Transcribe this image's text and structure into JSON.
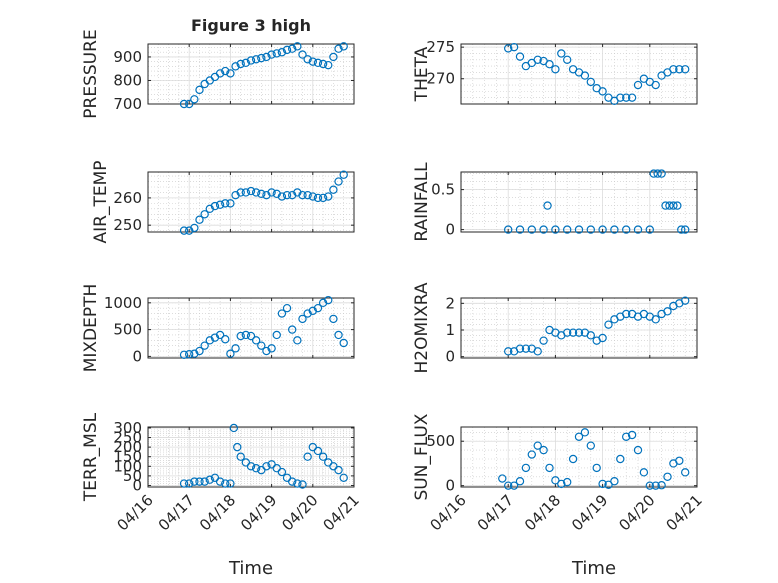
{
  "figure": {
    "title": "Figure 3 high",
    "shared_xlabel": "Time"
  },
  "colors": {
    "marker": "#0072BD",
    "axis": "#262626",
    "grid": "#c8c8c8",
    "background": "#ffffff"
  },
  "chart_data": [
    {
      "id": "pressure",
      "type": "scatter",
      "title": "Figure 3 high",
      "ylabel": "PRESSURE",
      "xlim": [
        "04/16",
        "04/21"
      ],
      "ylim": [
        700,
        955
      ],
      "yticks": [
        700,
        800,
        900
      ],
      "xticks": [
        "04/16",
        "04/17",
        "04/18",
        "04/19",
        "04/20",
        "04/21"
      ],
      "show_xticklabels": false,
      "grid": true,
      "minor_grid": true,
      "x": [
        "04/16 21:00",
        "04/17 00:00",
        "04/17 03:00",
        "04/17 06:00",
        "04/17 09:00",
        "04/17 12:00",
        "04/17 15:00",
        "04/17 18:00",
        "04/17 21:00",
        "04/18 00:00",
        "04/18 03:00",
        "04/18 06:00",
        "04/18 09:00",
        "04/18 12:00",
        "04/18 15:00",
        "04/18 18:00",
        "04/18 21:00",
        "04/19 00:00",
        "04/19 03:00",
        "04/19 06:00",
        "04/19 09:00",
        "04/19 12:00",
        "04/19 15:00",
        "04/19 18:00",
        "04/19 21:00",
        "04/20 00:00",
        "04/20 03:00",
        "04/20 06:00",
        "04/20 09:00",
        "04/20 12:00",
        "04/20 15:00",
        "04/20 18:00"
      ],
      "y": [
        700,
        700,
        720,
        760,
        785,
        800,
        815,
        830,
        840,
        830,
        860,
        870,
        875,
        885,
        890,
        895,
        900,
        910,
        915,
        920,
        930,
        935,
        945,
        910,
        890,
        880,
        875,
        870,
        865,
        900,
        935,
        945
      ]
    },
    {
      "id": "theta",
      "type": "scatter",
      "ylabel": "THETA",
      "xlim": [
        "04/16",
        "04/21"
      ],
      "ylim": [
        266,
        275.5
      ],
      "yticks": [
        270,
        275
      ],
      "xticks": [
        "04/16",
        "04/17",
        "04/18",
        "04/19",
        "04/20",
        "04/21"
      ],
      "show_xticklabels": false,
      "grid": true,
      "minor_grid": true,
      "x": [
        "04/17 00:00",
        "04/17 03:00",
        "04/17 06:00",
        "04/17 09:00",
        "04/17 12:00",
        "04/17 15:00",
        "04/17 18:00",
        "04/17 21:00",
        "04/18 00:00",
        "04/18 03:00",
        "04/18 06:00",
        "04/18 09:00",
        "04/18 12:00",
        "04/18 15:00",
        "04/18 18:00",
        "04/18 21:00",
        "04/19 00:00",
        "04/19 03:00",
        "04/19 06:00",
        "04/19 09:00",
        "04/19 12:00",
        "04/19 15:00",
        "04/19 18:00",
        "04/19 21:00",
        "04/20 00:00",
        "04/20 03:00",
        "04/20 06:00",
        "04/20 09:00",
        "04/20 12:00",
        "04/20 15:00",
        "04/20 18:00"
      ],
      "y": [
        274.8,
        275,
        273.5,
        272,
        272.5,
        273,
        272.8,
        272.3,
        271.5,
        274,
        273,
        271.5,
        271,
        270.5,
        269.5,
        268.5,
        268,
        267,
        266.5,
        267,
        267,
        267,
        269,
        270,
        269.5,
        269,
        270.5,
        271,
        271.5,
        271.5,
        271.5
      ]
    },
    {
      "id": "air_temp",
      "type": "scatter",
      "ylabel": "AIR_TEMP",
      "xlim": [
        "04/16",
        "04/21"
      ],
      "ylim": [
        247.5,
        269.5
      ],
      "yticks": [
        250,
        260
      ],
      "xticks": [
        "04/16",
        "04/17",
        "04/18",
        "04/19",
        "04/20",
        "04/21"
      ],
      "show_xticklabels": false,
      "grid": true,
      "minor_grid": true,
      "x": [
        "04/16 21:00",
        "04/17 00:00",
        "04/17 03:00",
        "04/17 06:00",
        "04/17 09:00",
        "04/17 12:00",
        "04/17 15:00",
        "04/17 18:00",
        "04/17 21:00",
        "04/18 00:00",
        "04/18 03:00",
        "04/18 06:00",
        "04/18 09:00",
        "04/18 12:00",
        "04/18 15:00",
        "04/18 18:00",
        "04/18 21:00",
        "04/19 00:00",
        "04/19 03:00",
        "04/19 06:00",
        "04/19 09:00",
        "04/19 12:00",
        "04/19 15:00",
        "04/19 18:00",
        "04/19 21:00",
        "04/20 00:00",
        "04/20 03:00",
        "04/20 06:00",
        "04/20 09:00",
        "04/20 12:00",
        "04/20 15:00",
        "04/20 18:00"
      ],
      "y": [
        248,
        248,
        249,
        252,
        254,
        256,
        257,
        257.5,
        258,
        258,
        261,
        262,
        262,
        262.5,
        262,
        261.5,
        261,
        262,
        261.5,
        260.5,
        261,
        261,
        262,
        261,
        261,
        260.5,
        260,
        260,
        260.5,
        263,
        266,
        268.5
      ]
    },
    {
      "id": "rainfall",
      "type": "scatter",
      "ylabel": "RAINFALL",
      "xlim": [
        "04/16",
        "04/21"
      ],
      "ylim": [
        -0.03,
        0.72
      ],
      "yticks": [
        0,
        0.5
      ],
      "xticks": [
        "04/16",
        "04/17",
        "04/18",
        "04/19",
        "04/20",
        "04/21"
      ],
      "show_xticklabels": false,
      "grid": true,
      "minor_grid": true,
      "x": [
        "04/17 00:00",
        "04/17 06:00",
        "04/17 12:00",
        "04/17 18:00",
        "04/18 00:00",
        "04/18 06:00",
        "04/18 12:00",
        "04/18 18:00",
        "04/19 00:00",
        "04/19 06:00",
        "04/19 12:00",
        "04/19 18:00",
        "04/20 00:00",
        "04/20 02:00",
        "04/20 04:00",
        "04/20 06:00",
        "04/20 08:00",
        "04/20 10:00",
        "04/20 12:00",
        "04/20 14:00",
        "04/20 16:00",
        "04/20 18:00",
        "04/17 20:00"
      ],
      "y": [
        0,
        0,
        0,
        0,
        0,
        0,
        0,
        0,
        0,
        0,
        0,
        0,
        0,
        0.7,
        0.7,
        0.7,
        0.3,
        0.3,
        0.3,
        0.3,
        0,
        0,
        0.3
      ]
    },
    {
      "id": "mixdepth",
      "type": "scatter",
      "ylabel": "MIXDEPTH",
      "xlim": [
        "04/16",
        "04/21"
      ],
      "ylim": [
        -30,
        1090
      ],
      "yticks": [
        0,
        500,
        1000
      ],
      "xticks": [
        "04/16",
        "04/17",
        "04/18",
        "04/19",
        "04/20",
        "04/21"
      ],
      "show_xticklabels": false,
      "grid": true,
      "minor_grid": true,
      "x": [
        "04/16 21:00",
        "04/17 00:00",
        "04/17 03:00",
        "04/17 06:00",
        "04/17 09:00",
        "04/17 12:00",
        "04/17 15:00",
        "04/17 18:00",
        "04/17 21:00",
        "04/18 00:00",
        "04/18 03:00",
        "04/18 06:00",
        "04/18 09:00",
        "04/18 12:00",
        "04/18 15:00",
        "04/18 18:00",
        "04/18 21:00",
        "04/19 00:00",
        "04/19 03:00",
        "04/19 06:00",
        "04/19 09:00",
        "04/19 12:00",
        "04/19 15:00",
        "04/19 18:00",
        "04/19 21:00",
        "04/20 00:00",
        "04/20 03:00",
        "04/20 06:00",
        "04/20 09:00",
        "04/20 12:00",
        "04/20 15:00",
        "04/20 18:00"
      ],
      "y": [
        30,
        40,
        50,
        100,
        200,
        300,
        350,
        400,
        320,
        50,
        150,
        380,
        400,
        380,
        300,
        200,
        100,
        150,
        400,
        800,
        900,
        500,
        300,
        700,
        800,
        850,
        900,
        1000,
        1050,
        700,
        400,
        250
      ]
    },
    {
      "id": "h2omixra",
      "type": "scatter",
      "ylabel": "H2OMIXRA",
      "xlim": [
        "04/16",
        "04/21"
      ],
      "ylim": [
        -0.05,
        2.2
      ],
      "yticks": [
        0,
        1,
        2
      ],
      "xticks": [
        "04/16",
        "04/17",
        "04/18",
        "04/19",
        "04/20",
        "04/21"
      ],
      "show_xticklabels": false,
      "grid": true,
      "minor_grid": true,
      "x": [
        "04/17 00:00",
        "04/17 03:00",
        "04/17 06:00",
        "04/17 09:00",
        "04/17 12:00",
        "04/17 15:00",
        "04/17 18:00",
        "04/17 21:00",
        "04/18 00:00",
        "04/18 03:00",
        "04/18 06:00",
        "04/18 09:00",
        "04/18 12:00",
        "04/18 15:00",
        "04/18 18:00",
        "04/18 21:00",
        "04/19 00:00",
        "04/19 03:00",
        "04/19 06:00",
        "04/19 09:00",
        "04/19 12:00",
        "04/19 15:00",
        "04/19 18:00",
        "04/19 21:00",
        "04/20 00:00",
        "04/20 03:00",
        "04/20 06:00",
        "04/20 09:00",
        "04/20 12:00",
        "04/20 15:00",
        "04/20 18:00"
      ],
      "y": [
        0.2,
        0.2,
        0.3,
        0.3,
        0.3,
        0.2,
        0.6,
        1.0,
        0.9,
        0.8,
        0.9,
        0.9,
        0.9,
        0.9,
        0.8,
        0.6,
        0.7,
        1.2,
        1.4,
        1.5,
        1.6,
        1.6,
        1.5,
        1.6,
        1.5,
        1.4,
        1.6,
        1.7,
        1.9,
        2.0,
        2.1
      ]
    },
    {
      "id": "terr_msl",
      "type": "scatter",
      "ylabel": "TERR_MSL",
      "xlim": [
        "04/16",
        "04/21"
      ],
      "ylim": [
        -8,
        305
      ],
      "yticks": [
        0,
        50,
        100,
        150,
        200,
        250,
        300
      ],
      "xticks": [
        "04/16",
        "04/17",
        "04/18",
        "04/19",
        "04/20",
        "04/21"
      ],
      "show_xticklabels": false,
      "grid": true,
      "minor_grid": true,
      "x": [
        "04/16 21:00",
        "04/17 00:00",
        "04/17 03:00",
        "04/17 06:00",
        "04/17 09:00",
        "04/17 12:00",
        "04/17 15:00",
        "04/17 18:00",
        "04/17 21:00",
        "04/18 00:00",
        "04/18 02:00",
        "04/18 04:00",
        "04/18 06:00",
        "04/18 09:00",
        "04/18 12:00",
        "04/18 15:00",
        "04/18 18:00",
        "04/18 21:00",
        "04/19 00:00",
        "04/19 03:00",
        "04/19 06:00",
        "04/19 09:00",
        "04/19 12:00",
        "04/19 15:00",
        "04/19 18:00",
        "04/19 21:00",
        "04/20 00:00",
        "04/20 03:00",
        "04/20 06:00",
        "04/20 09:00",
        "04/20 12:00",
        "04/20 15:00",
        "04/20 18:00"
      ],
      "y": [
        10,
        10,
        20,
        20,
        20,
        30,
        40,
        20,
        10,
        10,
        300,
        200,
        150,
        120,
        100,
        90,
        80,
        100,
        110,
        90,
        70,
        40,
        20,
        10,
        5,
        150,
        200,
        180,
        150,
        120,
        100,
        80,
        40
      ]
    },
    {
      "id": "sun_flux",
      "type": "scatter",
      "ylabel": "SUN_FLUX",
      "xlim": [
        "04/16",
        "04/21"
      ],
      "ylim": [
        -15,
        660
      ],
      "yticks": [
        0,
        500
      ],
      "xticks": [
        "04/16",
        "04/17",
        "04/18",
        "04/19",
        "04/20",
        "04/21"
      ],
      "show_xticklabels": true,
      "grid": true,
      "minor_grid": true,
      "x": [
        "04/16 21:00",
        "04/17 00:00",
        "04/17 03:00",
        "04/17 06:00",
        "04/17 09:00",
        "04/17 12:00",
        "04/17 15:00",
        "04/17 18:00",
        "04/17 21:00",
        "04/18 00:00",
        "04/18 03:00",
        "04/18 06:00",
        "04/18 09:00",
        "04/18 12:00",
        "04/18 15:00",
        "04/18 18:00",
        "04/18 21:00",
        "04/19 00:00",
        "04/19 03:00",
        "04/19 06:00",
        "04/19 09:00",
        "04/19 12:00",
        "04/19 15:00",
        "04/19 18:00",
        "04/19 21:00",
        "04/20 00:00",
        "04/20 03:00",
        "04/20 06:00",
        "04/20 09:00",
        "04/20 12:00",
        "04/20 15:00",
        "04/20 18:00"
      ],
      "y": [
        80,
        0,
        0,
        50,
        200,
        350,
        450,
        400,
        200,
        60,
        20,
        40,
        300,
        550,
        600,
        450,
        200,
        20,
        10,
        50,
        300,
        550,
        570,
        400,
        150,
        0,
        0,
        5,
        100,
        250,
        280,
        150
      ]
    }
  ],
  "layout_order": [
    "pressure",
    "theta",
    "air_temp",
    "rainfall",
    "mixdepth",
    "h2omixra",
    "terr_msl",
    "sun_flux"
  ]
}
